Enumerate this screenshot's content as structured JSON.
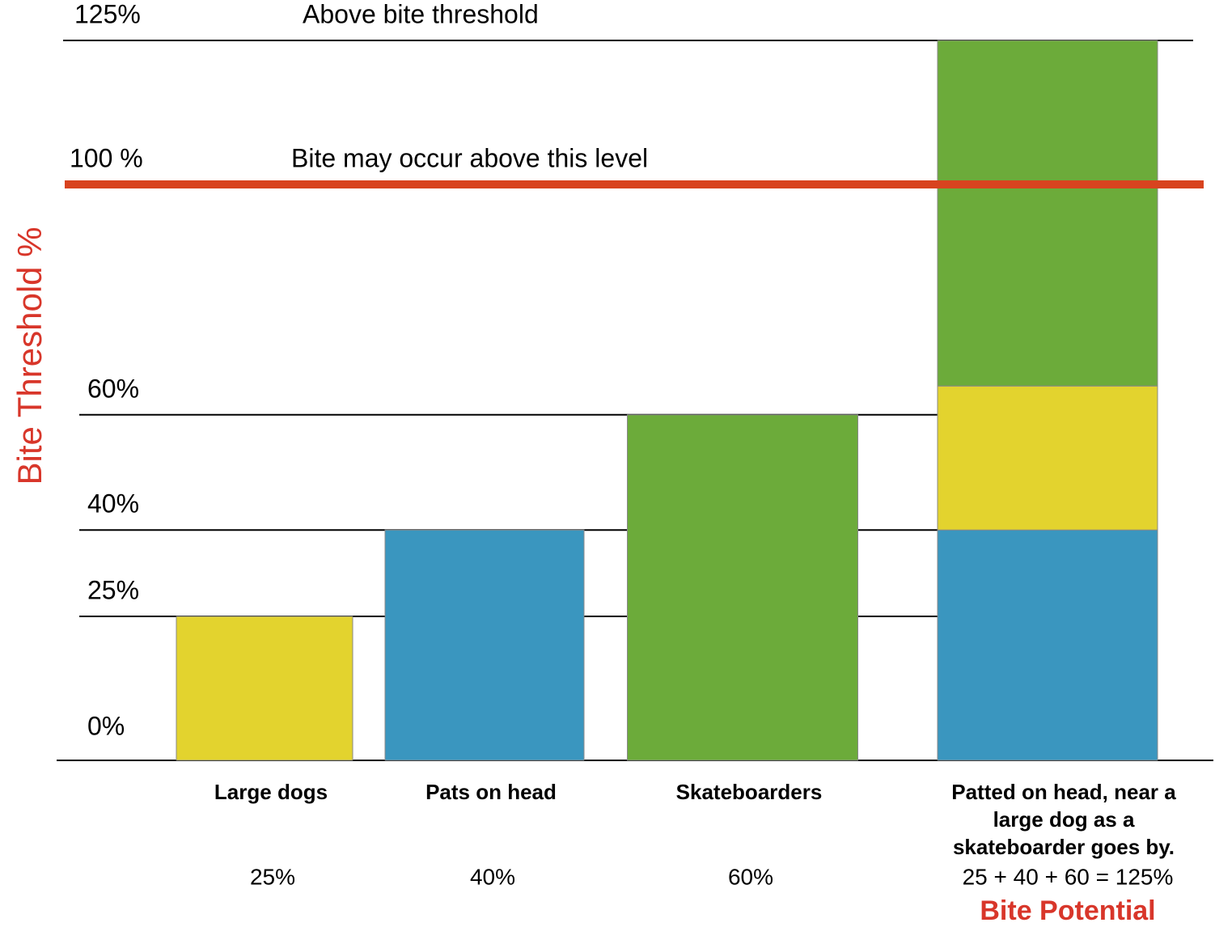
{
  "chart_data": {
    "type": "bar",
    "stacked": true,
    "ylabel": "Bite Threshold %",
    "ylabel_color": "#d8362a",
    "categories": [
      "Large dogs",
      "Pats on head",
      "Skateboarders",
      "Patted on head, near a large dog as a skateboarder goes by."
    ],
    "series": [
      {
        "color": "#3a96bf",
        "values": [
          null,
          40,
          null,
          40
        ]
      },
      {
        "color": "#e3d32e",
        "values": [
          25,
          null,
          null,
          25
        ]
      },
      {
        "color": "#6cab3a",
        "values": [
          null,
          null,
          60,
          60
        ]
      }
    ],
    "ylim": [
      0,
      125
    ],
    "yticks": [
      {
        "value": 0,
        "label": "0%"
      },
      {
        "value": 25,
        "label": "25%"
      },
      {
        "value": 40,
        "label": "40%"
      },
      {
        "value": 60,
        "label": "60%"
      },
      {
        "value": 100,
        "label": "100 %"
      },
      {
        "value": 125,
        "label": "125%"
      }
    ],
    "grid": true,
    "reference_line": {
      "value": 100,
      "color": "#d8431f"
    },
    "annotations": [
      {
        "y": 125,
        "text": "Above bite threshold"
      },
      {
        "y": 100,
        "text": "Bite may occur above this level"
      }
    ],
    "totals": [
      25,
      40,
      60,
      125
    ],
    "total_labels": [
      "25%",
      "40%",
      "60%",
      "25 + 40 + 60 = 125%"
    ],
    "footnote": "Bite Potential",
    "footnote_color": "#d8362a"
  }
}
